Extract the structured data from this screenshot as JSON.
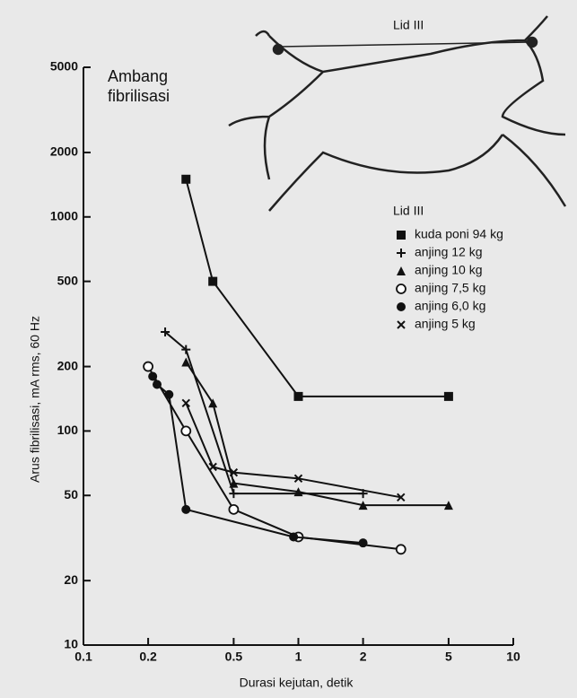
{
  "chart_data": {
    "type": "line",
    "annotation": "Ambang fibrilisasi",
    "figure_label": "Lid III",
    "legend_title": "Lid III",
    "x_label": "Durasi kejutan, detik",
    "y_label": "Arus fibrilisasi, mA rms, 60 Hz",
    "x_log": true,
    "y_log": true,
    "xlim": [
      0.1,
      10
    ],
    "xticks": [
      0.1,
      0.2,
      0.5,
      1,
      2,
      5,
      10
    ],
    "ylim": [
      10,
      5000
    ],
    "yticks": [
      10,
      20,
      50,
      100,
      200,
      500,
      1000,
      2000,
      5000
    ],
    "series": [
      {
        "name": "kuda poni 94 kg",
        "color": "#111111",
        "marker": "square",
        "x": [
          0.3,
          0.4,
          1,
          5
        ],
        "values": [
          1500,
          500,
          145,
          145
        ]
      },
      {
        "name": "anjing 12 kg",
        "color": "#111111",
        "marker": "plus",
        "x": [
          0.24,
          0.3,
          0.5,
          2
        ],
        "values": [
          290,
          240,
          51,
          51
        ]
      },
      {
        "name": "anjing 10 kg",
        "color": "#111111",
        "marker": "triangle",
        "x": [
          0.3,
          0.4,
          0.5,
          1,
          2,
          5
        ],
        "values": [
          210,
          135,
          57,
          52,
          45,
          45
        ]
      },
      {
        "name": "anjing 7,5 kg",
        "color": "#111111",
        "marker": "open-circle",
        "x": [
          0.2,
          0.3,
          0.5,
          1,
          3
        ],
        "values": [
          200,
          100,
          43,
          32,
          28
        ]
      },
      {
        "name": "anjing 6,0 kg",
        "color": "#111111",
        "marker": "circle",
        "x": [
          0.21,
          0.22,
          0.25,
          0.3,
          0.95,
          2
        ],
        "values": [
          180,
          165,
          148,
          43,
          32,
          30
        ]
      },
      {
        "name": "anjing 5 kg",
        "color": "#111111",
        "marker": "cross",
        "x": [
          0.3,
          0.4,
          0.5,
          1,
          3
        ],
        "values": [
          135,
          68,
          64,
          60,
          49
        ]
      }
    ]
  }
}
